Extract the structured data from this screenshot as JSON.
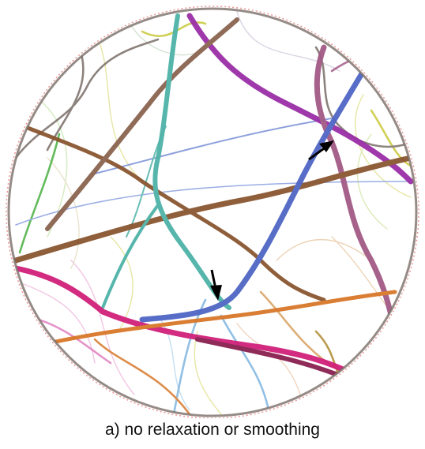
{
  "caption": "a) no relaxation or smoothing",
  "palette": {
    "rim": "#e05050",
    "purple": "#9a2ea6",
    "brown": "#8a5630",
    "teal": "#4fb3a8",
    "blue": "#4f66c4",
    "magenta": "#d0207a",
    "orange": "#d8782a",
    "green": "#48b040",
    "mauve": "#a35a86",
    "grey": "#7a6e68",
    "yellow": "#c9c83a",
    "lightblue": "#7fb5e0",
    "pink": "#e080c0"
  },
  "arrows": [
    {
      "name": "arrow-upper-right",
      "direction": "up-right"
    },
    {
      "name": "arrow-center",
      "direction": "down"
    }
  ]
}
